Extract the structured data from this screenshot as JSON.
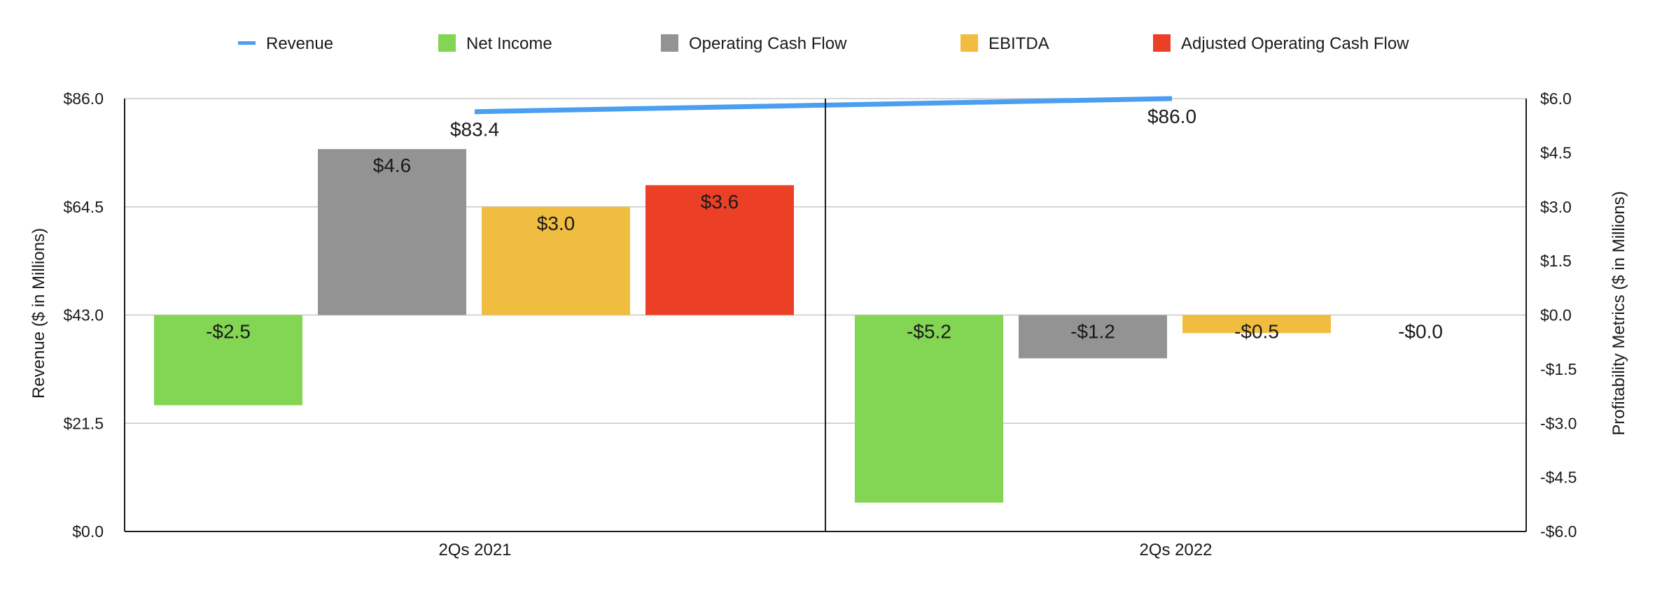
{
  "chart_data": {
    "type": "bar",
    "categories": [
      "2Qs 2021",
      "2Qs 2022"
    ],
    "legend_position": "top",
    "grid": true,
    "y_left": {
      "label": "Revenue ($ in Millions)",
      "range": [
        0,
        86
      ],
      "ticks": [
        "$0.0",
        "$21.5",
        "$43.0",
        "$64.5",
        "$86.0"
      ]
    },
    "y_right": {
      "label": "Profitability Metrics ($ in Millions)",
      "range": [
        -6,
        6
      ],
      "ticks": [
        "-$6.0",
        "-$4.5",
        "-$3.0",
        "-$1.5",
        "$0.0",
        "$1.5",
        "$3.0",
        "$4.5",
        "$6.0"
      ]
    },
    "line_series": {
      "name": "Revenue",
      "axis": "left",
      "color": "#4a9ff0",
      "values": [
        83.4,
        86.0
      ],
      "labels": [
        "$83.4",
        "$86.0"
      ]
    },
    "series": [
      {
        "name": "Net Income",
        "axis": "right",
        "color": "#82d653",
        "values": [
          -2.5,
          -5.2
        ],
        "labels": [
          "-$2.5",
          "-$5.2"
        ]
      },
      {
        "name": "Operating Cash Flow",
        "axis": "right",
        "color": "#939393",
        "values": [
          4.6,
          -1.2
        ],
        "labels": [
          "$4.6",
          "-$1.2"
        ]
      },
      {
        "name": "EBITDA",
        "axis": "right",
        "color": "#f0bd41",
        "values": [
          3.0,
          -0.5
        ],
        "labels": [
          "$3.0",
          "-$0.5"
        ]
      },
      {
        "name": "Adjusted Operating Cash Flow",
        "axis": "right",
        "color": "#eb4026",
        "values": [
          3.6,
          -0.0
        ],
        "labels": [
          "$3.6",
          "-$0.0"
        ]
      }
    ]
  }
}
